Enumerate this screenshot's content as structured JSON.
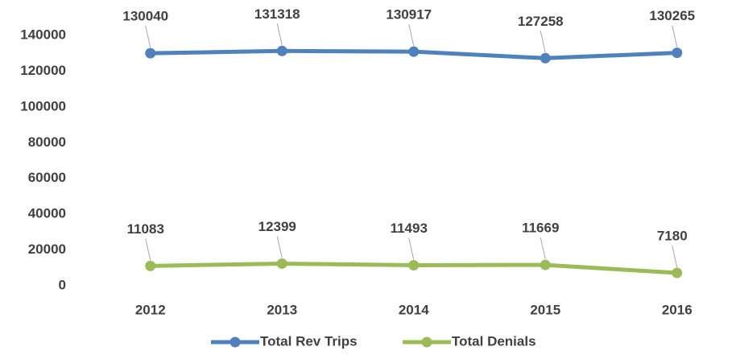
{
  "chart_data": {
    "type": "line",
    "categories": [
      "2012",
      "2013",
      "2014",
      "2015",
      "2016"
    ],
    "series": [
      {
        "name": "Total Rev Trips",
        "color": "#4f81bd",
        "values": [
          130040,
          131318,
          130917,
          127258,
          130265
        ]
      },
      {
        "name": "Total Denials",
        "color": "#9bbb59",
        "values": [
          11083,
          12399,
          11493,
          11669,
          7180
        ]
      }
    ],
    "ylim": [
      0,
      140000
    ],
    "yticks": [
      0,
      20000,
      40000,
      60000,
      80000,
      100000,
      120000,
      140000
    ],
    "grid": false,
    "legend": "bottom"
  }
}
